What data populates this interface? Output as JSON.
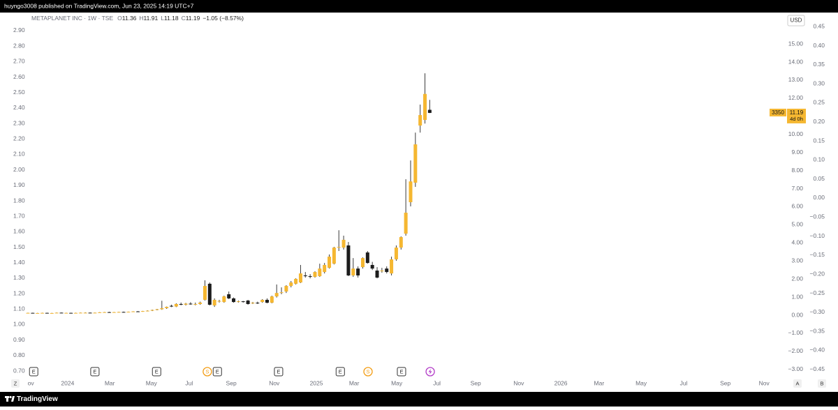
{
  "header": {
    "text": "huyngo3008 published on TradingView.com, Jun 23, 2025 14:19 UTC+7"
  },
  "footer": {
    "brand": "TradingView"
  },
  "chart_data": {
    "type": "candlestick",
    "legend": {
      "name": "METAPLANET INC · 1W · TSE",
      "ohlc_labels": [
        "O",
        "H",
        "L",
        "C"
      ],
      "change": "−1.05 (−8.57%)"
    },
    "currency": "USD",
    "up_color": "#f5b731",
    "down_color": "#1c1c1c",
    "wick_color": "#3a3a3a",
    "x": [
      0,
      1,
      2,
      3,
      4,
      5,
      6,
      7,
      8,
      9,
      10,
      11,
      12,
      13,
      14,
      15,
      16,
      17,
      18,
      19,
      20,
      21,
      22,
      23,
      24,
      25,
      26,
      27,
      28,
      29,
      30,
      31,
      32,
      33,
      34,
      35,
      36,
      37,
      38,
      39,
      40,
      41,
      42,
      43,
      44,
      45,
      46,
      47,
      48,
      49,
      50,
      51,
      52,
      53,
      54,
      55,
      56,
      57,
      58,
      59,
      60,
      61,
      62,
      63,
      64,
      65,
      66,
      67,
      68,
      69,
      70,
      71,
      72,
      73,
      74,
      75,
      76,
      77,
      78,
      79,
      80,
      81,
      82,
      83,
      84
    ],
    "open": [
      0.12,
      0.13,
      0.12,
      0.12,
      0.13,
      0.12,
      0.12,
      0.14,
      0.13,
      0.13,
      0.12,
      0.13,
      0.14,
      0.14,
      0.13,
      0.14,
      0.16,
      0.17,
      0.16,
      0.17,
      0.18,
      0.17,
      0.19,
      0.21,
      0.2,
      0.23,
      0.25,
      0.29,
      0.33,
      0.39,
      0.52,
      0.48,
      0.62,
      0.58,
      0.64,
      0.6,
      0.62,
      0.85,
      1.74,
      0.54,
      0.77,
      0.73,
      1.16,
      0.93,
      0.75,
      0.77,
      0.81,
      0.66,
      0.69,
      0.73,
      0.85,
      0.69,
      1.04,
      1.23,
      1.31,
      1.62,
      1.74,
      1.81,
      2.2,
      2.16,
      2.12,
      2.16,
      2.39,
      2.62,
      2.85,
      3.74,
      3.74,
      3.86,
      2.2,
      2.58,
      2.66,
      3.47,
      2.78,
      2.47,
      2.43,
      2.58,
      2.31,
      3.09,
      3.74,
      4.51,
      6.25,
      7.33,
      10.49,
      10.8,
      11.36
    ],
    "high": [
      0.14,
      0.14,
      0.13,
      0.14,
      0.14,
      0.13,
      0.15,
      0.15,
      0.14,
      0.14,
      0.14,
      0.15,
      0.16,
      0.15,
      0.15,
      0.17,
      0.18,
      0.19,
      0.18,
      0.19,
      0.2,
      0.2,
      0.22,
      0.23,
      0.24,
      0.27,
      0.31,
      0.35,
      0.8,
      0.48,
      0.58,
      0.66,
      0.7,
      0.68,
      0.72,
      0.7,
      0.75,
      1.93,
      1.81,
      0.93,
      0.85,
      1.08,
      1.31,
      0.98,
      0.81,
      0.79,
      0.85,
      0.73,
      0.75,
      0.89,
      0.93,
      1.08,
      1.7,
      1.54,
      1.66,
      1.89,
      2.04,
      2.78,
      2.39,
      2.27,
      2.43,
      2.85,
      2.89,
      3.36,
      3.78,
      4.7,
      4.4,
      4.05,
      3.16,
      2.7,
      3.2,
      3.55,
      2.95,
      2.66,
      2.62,
      2.7,
      3.24,
      3.86,
      4.36,
      7.52,
      8.56,
      10.1,
      11.65,
      13.38,
      11.91
    ],
    "low": [
      0.11,
      0.12,
      0.11,
      0.11,
      0.12,
      0.11,
      0.11,
      0.12,
      0.12,
      0.12,
      0.11,
      0.12,
      0.13,
      0.12,
      0.12,
      0.13,
      0.15,
      0.15,
      0.15,
      0.16,
      0.16,
      0.16,
      0.18,
      0.19,
      0.19,
      0.21,
      0.23,
      0.27,
      0.3,
      0.35,
      0.45,
      0.45,
      0.55,
      0.54,
      0.58,
      0.55,
      0.58,
      0.81,
      0.54,
      0.46,
      0.7,
      0.69,
      0.89,
      0.69,
      0.7,
      0.7,
      0.58,
      0.62,
      0.62,
      0.69,
      0.66,
      0.66,
      0.98,
      1.16,
      1.23,
      1.54,
      1.7,
      1.78,
      2.08,
      2.04,
      2.08,
      2.12,
      2.31,
      2.58,
      2.81,
      3.55,
      3.63,
      2.16,
      2.12,
      2.08,
      2.58,
      2.85,
      2.5,
      2.04,
      2.35,
      2.31,
      2.2,
      3.01,
      3.63,
      4.4,
      6.02,
      7.1,
      10.1,
      10.6,
      11.18
    ],
    "close": [
      0.13,
      0.12,
      0.12,
      0.13,
      0.12,
      0.12,
      0.14,
      0.13,
      0.13,
      0.12,
      0.13,
      0.14,
      0.14,
      0.13,
      0.14,
      0.16,
      0.17,
      0.16,
      0.17,
      0.18,
      0.17,
      0.19,
      0.21,
      0.2,
      0.23,
      0.25,
      0.29,
      0.33,
      0.39,
      0.46,
      0.48,
      0.62,
      0.58,
      0.64,
      0.6,
      0.62,
      0.7,
      1.62,
      0.58,
      0.85,
      0.79,
      1.04,
      0.93,
      0.73,
      0.77,
      0.73,
      0.62,
      0.69,
      0.68,
      0.85,
      0.69,
      1.04,
      1.23,
      1.27,
      1.62,
      1.81,
      2.01,
      2.31,
      2.16,
      2.12,
      2.39,
      2.58,
      2.78,
      3.24,
      3.74,
      3.78,
      4.17,
      2.2,
      2.58,
      2.2,
      3.16,
      2.89,
      2.58,
      2.08,
      2.47,
      2.39,
      3.09,
      3.74,
      4.32,
      5.67,
      7.4,
      9.45,
      11.07,
      12.24,
      11.19
    ],
    "xlim": [
      -5.84,
      158.4
    ],
    "xticks": [
      {
        "value": 0.6,
        "label": "ov"
      },
      {
        "value": 8.3,
        "label": "2024"
      },
      {
        "value": 17.1,
        "label": "Mar"
      },
      {
        "value": 25.8,
        "label": "May"
      },
      {
        "value": 33.7,
        "label": "Jul"
      },
      {
        "value": 42.5,
        "label": "Sep"
      },
      {
        "value": 51.5,
        "label": "Nov"
      },
      {
        "value": 60.3,
        "label": "2025"
      },
      {
        "value": 68.2,
        "label": "Mar"
      },
      {
        "value": 77.1,
        "label": "May"
      },
      {
        "value": 85.5,
        "label": "Jul"
      },
      {
        "value": 93.6,
        "label": "Sep"
      },
      {
        "value": 102.6,
        "label": "Nov"
      },
      {
        "value": 111.4,
        "label": "2026"
      },
      {
        "value": 119.4,
        "label": "Mar"
      },
      {
        "value": 128.2,
        "label": "May"
      },
      {
        "value": 137.1,
        "label": "Jul"
      },
      {
        "value": 145.8,
        "label": "Sep"
      },
      {
        "value": 153.9,
        "label": "Nov"
      }
    ],
    "ylim": [
      -4.24,
      16.74
    ],
    "yticks": [
      {
        "value": 15,
        "label": "15.00"
      },
      {
        "value": 14,
        "label": "14.00"
      },
      {
        "value": 13,
        "label": "13.00"
      },
      {
        "value": 12,
        "label": "12.00"
      },
      {
        "value": 11,
        "label": "11.00"
      },
      {
        "value": 10,
        "label": "10.00"
      },
      {
        "value": 9,
        "label": "9.00"
      },
      {
        "value": 8,
        "label": "8.00"
      },
      {
        "value": 7,
        "label": "7.00"
      },
      {
        "value": 6,
        "label": "6.00"
      },
      {
        "value": 5,
        "label": "5.00"
      },
      {
        "value": 4,
        "label": "4.00"
      },
      {
        "value": 3,
        "label": "3.00"
      },
      {
        "value": 2,
        "label": "2.00"
      },
      {
        "value": 1,
        "label": "1.00"
      },
      {
        "value": 0,
        "label": "0.00"
      },
      {
        "value": -1,
        "label": "−1.00"
      },
      {
        "value": -2,
        "label": "−2.00"
      },
      {
        "value": -3,
        "label": "−3.00"
      }
    ],
    "y2lim": [
      0.565,
      3.017
    ],
    "y2ticks": [
      {
        "value": 2.9,
        "label": "2.90"
      },
      {
        "value": 2.8,
        "label": "2.80"
      },
      {
        "value": 2.7,
        "label": "2.70"
      },
      {
        "value": 2.6,
        "label": "2.60"
      },
      {
        "value": 2.5,
        "label": "2.50"
      },
      {
        "value": 2.4,
        "label": "2.40"
      },
      {
        "value": 2.3,
        "label": "2.30"
      },
      {
        "value": 2.2,
        "label": "2.20"
      },
      {
        "value": 2.1,
        "label": "2.10"
      },
      {
        "value": 2.0,
        "label": "2.00"
      },
      {
        "value": 1.9,
        "label": "1.90"
      },
      {
        "value": 1.8,
        "label": "1.80"
      },
      {
        "value": 1.7,
        "label": "1.70"
      },
      {
        "value": 1.6,
        "label": "1.60"
      },
      {
        "value": 1.5,
        "label": "1.50"
      },
      {
        "value": 1.4,
        "label": "1.40"
      },
      {
        "value": 1.3,
        "label": "1.30"
      },
      {
        "value": 1.2,
        "label": "1.20"
      },
      {
        "value": 1.1,
        "label": "1.10"
      },
      {
        "value": 1.0,
        "label": "1.00"
      },
      {
        "value": 0.9,
        "label": "0.90"
      },
      {
        "value": 0.8,
        "label": "0.80"
      },
      {
        "value": 0.7,
        "label": "0.70"
      }
    ],
    "y3lim": [
      -0.509,
      0.487
    ],
    "y3ticks": [
      {
        "value": 0.45,
        "label": "0.45"
      },
      {
        "value": 0.4,
        "label": "0.40"
      },
      {
        "value": 0.35,
        "label": "0.35"
      },
      {
        "value": 0.3,
        "label": "0.30"
      },
      {
        "value": 0.25,
        "label": "0.25"
      },
      {
        "value": 0.2,
        "label": "0.20"
      },
      {
        "value": 0.15,
        "label": "0.15"
      },
      {
        "value": 0.1,
        "label": "0.10"
      },
      {
        "value": 0.05,
        "label": "0.05"
      },
      {
        "value": 0,
        "label": "0.00"
      },
      {
        "value": -0.05,
        "label": "−0.05"
      },
      {
        "value": -0.1,
        "label": "−0.10"
      },
      {
        "value": -0.15,
        "label": "−0.15"
      },
      {
        "value": -0.2,
        "label": "−0.20"
      },
      {
        "value": -0.25,
        "label": "−0.25"
      },
      {
        "value": -0.3,
        "label": "−0.30"
      },
      {
        "value": -0.35,
        "label": "−0.35"
      },
      {
        "value": -0.4,
        "label": "−0.40"
      },
      {
        "value": -0.45,
        "label": "−0.45"
      }
    ],
    "price_tag": {
      "left": "3350",
      "countdown": "4d 0h"
    },
    "events": [
      {
        "label": "E",
        "x": 1.2
      },
      {
        "label": "E",
        "x": 14.0
      },
      {
        "label": "E",
        "x": 26.9
      },
      {
        "label": "S",
        "x": 37.5,
        "color": "#f39c12"
      },
      {
        "label": "E",
        "x": 39.6
      },
      {
        "label": "E",
        "x": 52.4
      },
      {
        "label": "E",
        "x": 65.3
      },
      {
        "label": "S",
        "x": 71.1,
        "color": "#f39c12"
      },
      {
        "label": "E",
        "x": 78.1
      },
      {
        "icon": "bolt",
        "x": 84.1,
        "color": "#b23bc7"
      }
    ],
    "axis_buttons": [
      "Z",
      "A",
      "B"
    ]
  }
}
